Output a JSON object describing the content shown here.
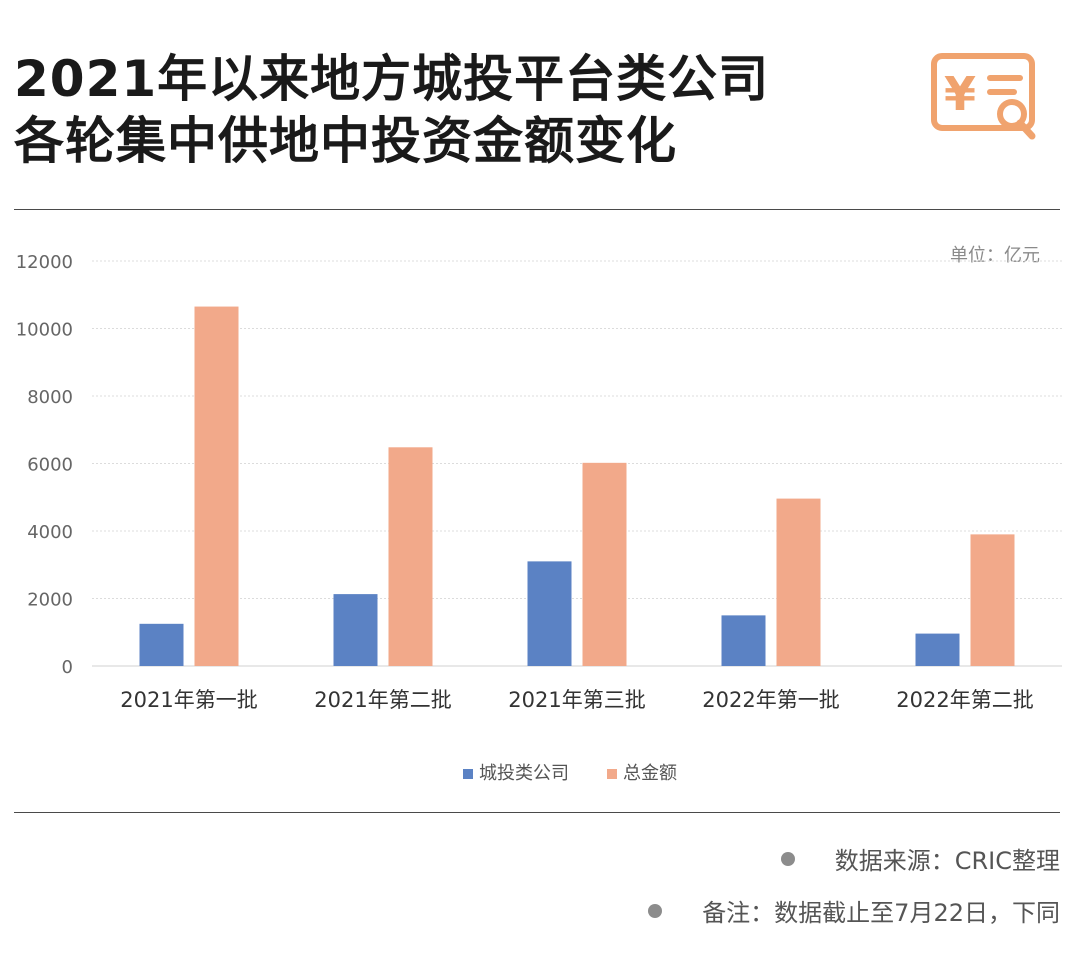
{
  "title": {
    "line1": "2021年以来地方城投平台类公司",
    "line2": "各轮集中供地中投资金额变化"
  },
  "logo": {
    "icon": "yen-document-search-icon",
    "glyph": "¥",
    "color": "#F0A36E"
  },
  "unit_label": "单位：亿元",
  "notes": {
    "source": "数据来源：CRIC整理",
    "remark": "备注：数据截止至7月22日，下同"
  },
  "chart_data": {
    "type": "bar",
    "categories": [
      "2021年第一批",
      "2021年第二批",
      "2021年第三批",
      "2022年第一批",
      "2022年第二批"
    ],
    "series": [
      {
        "name": "城投类公司",
        "values": [
          1250,
          2130,
          3100,
          1500,
          960
        ],
        "color": "#5B82C4"
      },
      {
        "name": "总金额",
        "values": [
          10650,
          6480,
          6020,
          4960,
          3900
        ],
        "color": "#F2A98A"
      }
    ],
    "yticks": [
      "0",
      "2000",
      "4000",
      "6000",
      "8000",
      "10000",
      "12000"
    ],
    "ylim": [
      0,
      12000
    ],
    "grid": true,
    "legend_position": "bottom-center"
  }
}
